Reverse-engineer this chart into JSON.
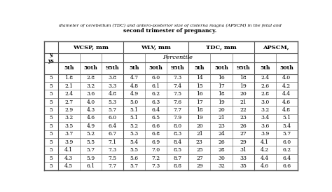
{
  "title_line1": "diameter of cerebellum (TDC) and antero-posterior size of cisterna magna (APSCM) in the fetal and",
  "title_line2": "second trimester of pregnancy.",
  "row_label_header": [
    "y,",
    "ys"
  ],
  "sub_headers": [
    "5th",
    "50th",
    "95th",
    "5th",
    "50th",
    "95th",
    "5th",
    "50th",
    "95th",
    "5th",
    "50th"
  ],
  "group_headers": [
    {
      "label": "WCSP, mm",
      "cols": [
        0,
        1,
        2
      ]
    },
    {
      "label": "WLV, mm",
      "cols": [
        3,
        4,
        5
      ]
    },
    {
      "label": "TDC, mm",
      "cols": [
        6,
        7,
        8
      ]
    },
    {
      "label": "APSCM,",
      "cols": [
        9,
        10
      ]
    }
  ],
  "row_labels": [
    "5",
    "5",
    "5",
    "5",
    "5",
    "5",
    "5",
    "5",
    "5",
    "5",
    "5",
    "5"
  ],
  "data": [
    [
      "1.8",
      "2.8",
      "3.8",
      "4.7",
      "6.0",
      "7.3",
      "14",
      "16",
      "18",
      "2.4",
      "4.0"
    ],
    [
      "2.1",
      "3.2",
      "3.3",
      "4.8",
      "6.1",
      "7.4",
      "15",
      "17",
      "19",
      "2.6",
      "4.2"
    ],
    [
      "2.4",
      "3.6",
      "4.8",
      "4.9",
      "6.2",
      "7.5",
      "16",
      "18",
      "20",
      "2.8",
      "4.4"
    ],
    [
      "2.7",
      "4.0",
      "5.3",
      "5.0",
      "6.3",
      "7.6",
      "17",
      "19",
      "21",
      "3.0",
      "4.6"
    ],
    [
      "2.9",
      "4.3",
      "5.7",
      "5.1",
      "6.4",
      "7.7",
      "18",
      "20",
      "22",
      "3.2",
      "4.8"
    ],
    [
      "3.2",
      "4.6",
      "6.0",
      "5.1",
      "6.5",
      "7.9",
      "19",
      "21",
      "23",
      "3.4",
      "5.1"
    ],
    [
      "3.5",
      "4.9",
      "6.4",
      "5.2",
      "6.6",
      "8.0",
      "20",
      "23",
      "26",
      "3.6",
      "5.4"
    ],
    [
      "3.7",
      "5.2",
      "6.7",
      "5.3",
      "6.8",
      "8.3",
      "21",
      "24",
      "27",
      "3.9",
      "5.7"
    ],
    [
      "3.9",
      "5.5",
      "7.1",
      "5.4",
      "6.9",
      "8.4",
      "23",
      "26",
      "29",
      "4.1",
      "6.0"
    ],
    [
      "4.1",
      "5.7",
      "7.3",
      "5.5",
      "7.0",
      "8.5",
      "25",
      "28",
      "31",
      "4.2",
      "6.2"
    ],
    [
      "4.3",
      "5.9",
      "7.5",
      "5.6",
      "7.2",
      "8.7",
      "27",
      "30",
      "33",
      "4.4",
      "6.4"
    ],
    [
      "4.5",
      "6.1",
      "7.7",
      "5.7",
      "7.3",
      "8.8",
      "29",
      "32",
      "35",
      "4.6",
      "6.6"
    ]
  ],
  "background_color": "#ffffff",
  "text_color": "#000000",
  "line_color": "#555555",
  "font_size": 5.5,
  "header_font_size": 6.0,
  "title_font_size1": 4.5,
  "title_font_size2": 5.5
}
